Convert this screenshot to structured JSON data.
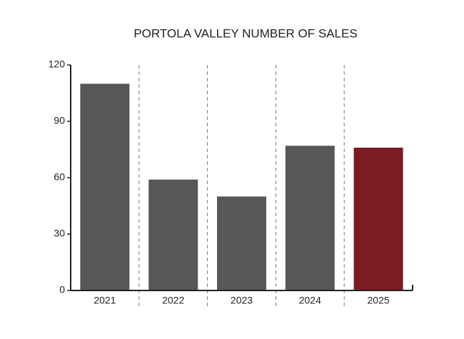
{
  "chart_data": {
    "type": "bar",
    "title": "PORTOLA VALLEY NUMBER OF SALES",
    "categories": [
      "2021",
      "2022",
      "2023",
      "2024",
      "2025"
    ],
    "values": [
      110,
      59,
      50,
      77,
      76
    ],
    "colors": [
      "#575757",
      "#575757",
      "#575757",
      "#575757",
      "#7a1c22"
    ],
    "ylim": [
      0,
      120
    ],
    "yticks": [
      0,
      30,
      60,
      90,
      120
    ],
    "grid": false
  }
}
